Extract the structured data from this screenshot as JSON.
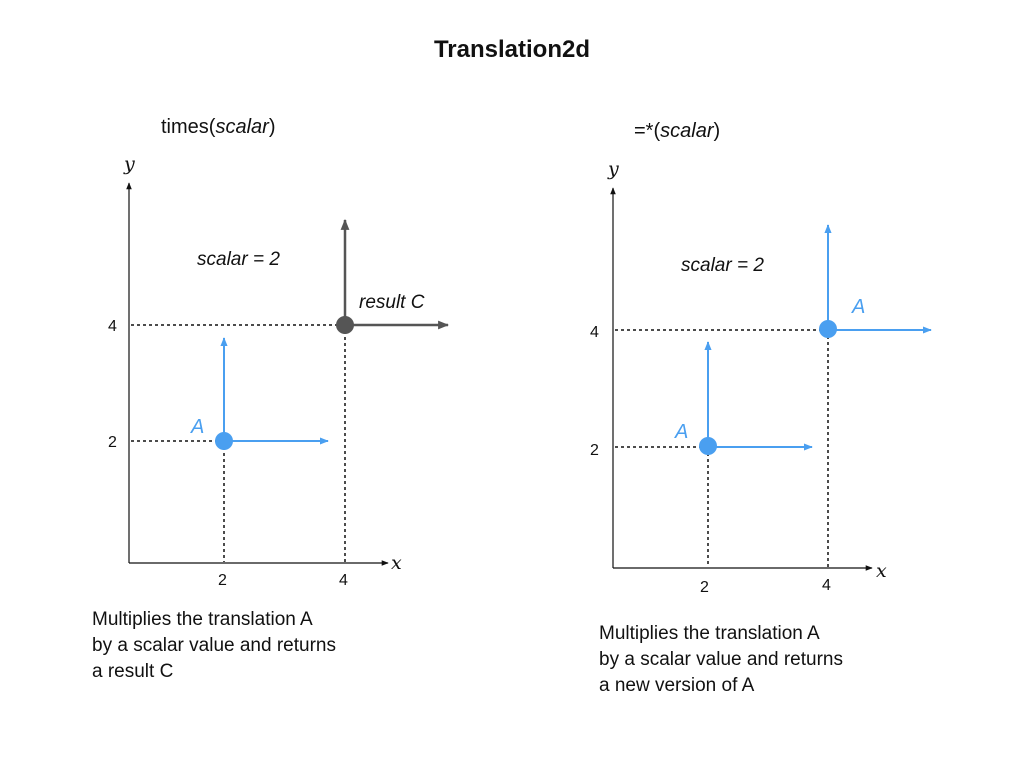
{
  "title": "Translation2d",
  "colors": {
    "blue": "#4a9ff0",
    "gray": "#555555",
    "axis": "#111111"
  },
  "left": {
    "heading_prefix": "times(",
    "heading_arg": "scalar",
    "heading_suffix": ")",
    "x_axis_label": "x",
    "y_axis_label": "y",
    "x_ticks": [
      "2",
      "4"
    ],
    "y_ticks": [
      "2",
      "4"
    ],
    "scalar_label": "scalar = 2",
    "point_a_label": "A",
    "result_label": "result C",
    "description": [
      "Multiplies the translation A",
      "by a scalar value and returns",
      "a result C"
    ]
  },
  "right": {
    "heading_prefix": "=*(",
    "heading_arg": "scalar",
    "heading_suffix": ")",
    "x_axis_label": "x",
    "y_axis_label": "y",
    "x_ticks": [
      "2",
      "4"
    ],
    "y_ticks": [
      "2",
      "4"
    ],
    "scalar_label": "scalar = 2",
    "point_a_label": "A",
    "result_label": "A",
    "description": [
      "Multiplies the translation A",
      "by a scalar value and returns",
      "a new version of A"
    ]
  }
}
